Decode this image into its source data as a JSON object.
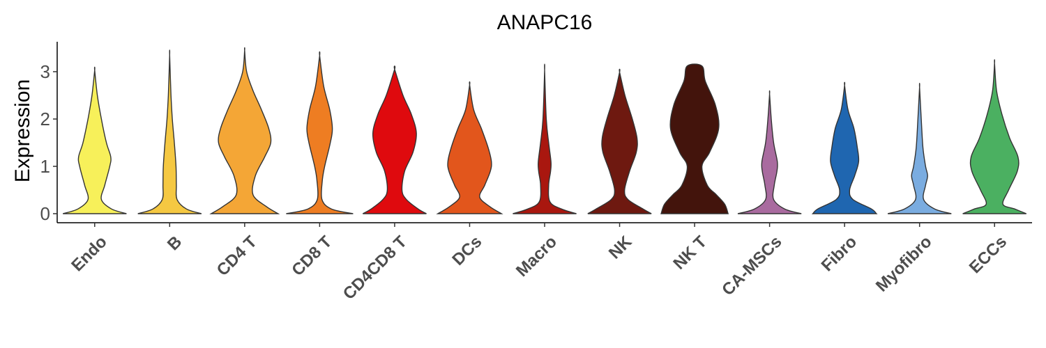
{
  "chart_data": {
    "type": "violin",
    "title": "ANAPC16",
    "ylabel": "Expression",
    "xlabel": "",
    "ylim": [
      -0.15,
      3.6
    ],
    "yticks": [
      0,
      1,
      2,
      3
    ],
    "categories": [
      "Endo",
      "B",
      "CD4 T",
      "CD8 T",
      "CD4CD8 T",
      "DCs",
      "Macro",
      "NK",
      "NK T",
      "CA-MSCs",
      "Fibro",
      "Myofibro",
      "ECCs"
    ],
    "colors": [
      "#f7f05a",
      "#f5c842",
      "#f4a636",
      "#ee7d22",
      "#df0a0e",
      "#e2561c",
      "#a9170f",
      "#6e1910",
      "#43140c",
      "#a96b9f",
      "#1f66b0",
      "#7aace0",
      "#4bb061"
    ],
    "violins": [
      {
        "name": "Endo",
        "max": 3.03,
        "profile": [
          [
            0,
            0.95
          ],
          [
            0.1,
            0.5
          ],
          [
            0.3,
            0.2
          ],
          [
            0.6,
            0.3
          ],
          [
            1.0,
            0.45
          ],
          [
            1.2,
            0.48
          ],
          [
            1.5,
            0.35
          ],
          [
            2.0,
            0.2
          ],
          [
            2.5,
            0.08
          ],
          [
            3.03,
            0
          ]
        ]
      },
      {
        "name": "B",
        "max": 3.35,
        "profile": [
          [
            0,
            0.95
          ],
          [
            0.1,
            0.5
          ],
          [
            0.3,
            0.22
          ],
          [
            0.6,
            0.2
          ],
          [
            1.0,
            0.19
          ],
          [
            1.5,
            0.14
          ],
          [
            2.0,
            0.08
          ],
          [
            2.5,
            0.04
          ],
          [
            3.35,
            0
          ]
        ]
      },
      {
        "name": "CD4 T",
        "max": 3.45,
        "profile": [
          [
            0,
            1.0
          ],
          [
            0.15,
            0.65
          ],
          [
            0.4,
            0.25
          ],
          [
            0.8,
            0.32
          ],
          [
            1.2,
            0.6
          ],
          [
            1.5,
            0.78
          ],
          [
            1.8,
            0.72
          ],
          [
            2.2,
            0.5
          ],
          [
            2.6,
            0.25
          ],
          [
            3.0,
            0.06
          ],
          [
            3.45,
            0
          ]
        ]
      },
      {
        "name": "CD8 T",
        "max": 3.34,
        "profile": [
          [
            0,
            1.0
          ],
          [
            0.1,
            0.35
          ],
          [
            0.3,
            0.07
          ],
          [
            0.7,
            0.08
          ],
          [
            1.0,
            0.15
          ],
          [
            1.5,
            0.32
          ],
          [
            1.8,
            0.38
          ],
          [
            2.2,
            0.3
          ],
          [
            2.7,
            0.12
          ],
          [
            3.34,
            0
          ]
        ]
      },
      {
        "name": "CD4CD8 T",
        "max": 3.05,
        "profile": [
          [
            0,
            0.95
          ],
          [
            0.1,
            0.7
          ],
          [
            0.3,
            0.35
          ],
          [
            0.5,
            0.22
          ],
          [
            0.9,
            0.3
          ],
          [
            1.3,
            0.55
          ],
          [
            1.7,
            0.65
          ],
          [
            2.1,
            0.5
          ],
          [
            2.5,
            0.25
          ],
          [
            3.05,
            0
          ]
        ]
      },
      {
        "name": "DCs",
        "max": 2.72,
        "profile": [
          [
            0,
            0.95
          ],
          [
            0.15,
            0.6
          ],
          [
            0.35,
            0.3
          ],
          [
            0.6,
            0.45
          ],
          [
            0.9,
            0.62
          ],
          [
            1.1,
            0.65
          ],
          [
            1.4,
            0.55
          ],
          [
            1.8,
            0.35
          ],
          [
            2.2,
            0.12
          ],
          [
            2.72,
            0
          ]
        ]
      },
      {
        "name": "Macro",
        "max": 3.03,
        "profile": [
          [
            0,
            0.95
          ],
          [
            0.1,
            0.5
          ],
          [
            0.25,
            0.16
          ],
          [
            0.6,
            0.12
          ],
          [
            0.9,
            0.18
          ],
          [
            1.1,
            0.19
          ],
          [
            1.5,
            0.12
          ],
          [
            2.0,
            0.05
          ],
          [
            3.03,
            0
          ]
        ]
      },
      {
        "name": "NK",
        "max": 2.99,
        "profile": [
          [
            0,
            0.95
          ],
          [
            0.1,
            0.7
          ],
          [
            0.3,
            0.25
          ],
          [
            0.5,
            0.15
          ],
          [
            0.9,
            0.3
          ],
          [
            1.3,
            0.5
          ],
          [
            1.6,
            0.52
          ],
          [
            2.0,
            0.38
          ],
          [
            2.5,
            0.16
          ],
          [
            2.99,
            0
          ]
        ]
      },
      {
        "name": "NK T",
        "max": 3.12,
        "profile": [
          [
            0,
            1.0
          ],
          [
            0.2,
            0.9
          ],
          [
            0.4,
            0.65
          ],
          [
            0.6,
            0.38
          ],
          [
            1.0,
            0.22
          ],
          [
            1.3,
            0.45
          ],
          [
            1.8,
            0.72
          ],
          [
            2.3,
            0.62
          ],
          [
            2.8,
            0.32
          ],
          [
            3.12,
            0.22
          ]
        ]
      },
      {
        "name": "CA-MSCs",
        "max": 2.53,
        "profile": [
          [
            0,
            0.95
          ],
          [
            0.1,
            0.45
          ],
          [
            0.3,
            0.12
          ],
          [
            0.6,
            0.14
          ],
          [
            0.9,
            0.22
          ],
          [
            1.1,
            0.23
          ],
          [
            1.5,
            0.12
          ],
          [
            2.0,
            0.05
          ],
          [
            2.53,
            0
          ]
        ]
      },
      {
        "name": "Fibro",
        "max": 2.71,
        "profile": [
          [
            0,
            0.95
          ],
          [
            0.1,
            0.8
          ],
          [
            0.3,
            0.25
          ],
          [
            0.5,
            0.15
          ],
          [
            0.8,
            0.3
          ],
          [
            1.1,
            0.42
          ],
          [
            1.4,
            0.38
          ],
          [
            1.8,
            0.28
          ],
          [
            2.2,
            0.1
          ],
          [
            2.71,
            0
          ]
        ]
      },
      {
        "name": "Myofibro",
        "max": 2.67,
        "profile": [
          [
            0,
            0.95
          ],
          [
            0.1,
            0.45
          ],
          [
            0.3,
            0.12
          ],
          [
            0.6,
            0.18
          ],
          [
            0.8,
            0.24
          ],
          [
            1.0,
            0.18
          ],
          [
            1.4,
            0.1
          ],
          [
            2.0,
            0.05
          ],
          [
            2.67,
            0
          ]
        ]
      },
      {
        "name": "ECCs",
        "max": 3.18,
        "profile": [
          [
            0,
            0.95
          ],
          [
            0.1,
            0.6
          ],
          [
            0.2,
            0.25
          ],
          [
            0.5,
            0.42
          ],
          [
            0.9,
            0.68
          ],
          [
            1.2,
            0.7
          ],
          [
            1.6,
            0.45
          ],
          [
            2.1,
            0.22
          ],
          [
            2.6,
            0.06
          ],
          [
            3.18,
            0
          ]
        ]
      }
    ]
  }
}
